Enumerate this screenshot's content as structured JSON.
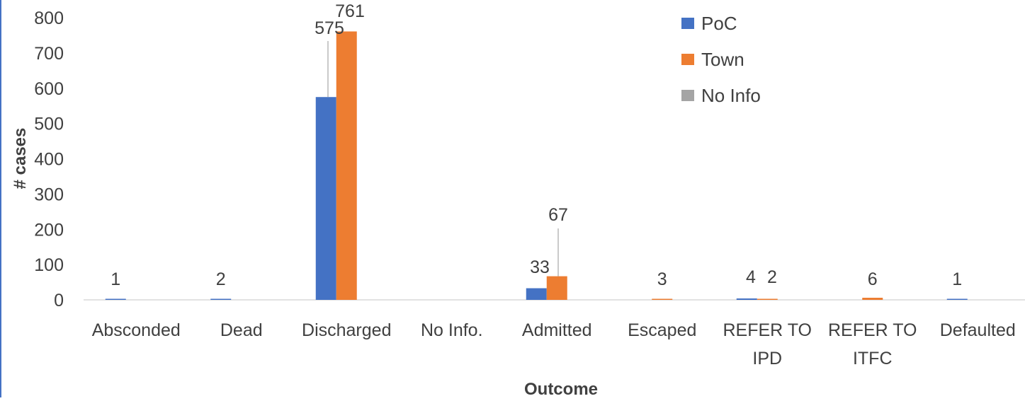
{
  "chart_data": {
    "type": "bar",
    "title": "",
    "xlabel": "Outcome",
    "ylabel": "# cases",
    "ylim": [
      0,
      800
    ],
    "yticks": [
      0,
      100,
      200,
      300,
      400,
      500,
      600,
      700,
      800
    ],
    "categories": [
      [
        "Absconded"
      ],
      [
        "Dead"
      ],
      [
        "Discharged"
      ],
      [
        "No Info."
      ],
      [
        "Admitted"
      ],
      [
        "Escaped"
      ],
      [
        "REFER TO",
        "IPD"
      ],
      [
        "REFER TO",
        "ITFC"
      ],
      [
        "Defaulted"
      ]
    ],
    "series": [
      {
        "name": "PoC",
        "color": "#4472C4",
        "values": [
          1,
          2,
          575,
          0,
          33,
          0,
          4,
          0,
          1
        ]
      },
      {
        "name": "Town",
        "color": "#ED7D31",
        "values": [
          0,
          0,
          761,
          0,
          67,
          3,
          2,
          6,
          0
        ]
      },
      {
        "name": "No Info",
        "color": "#A5A5A5",
        "values": [
          0,
          0,
          0,
          0,
          0,
          0,
          0,
          0,
          0
        ]
      }
    ],
    "data_labels": [
      {
        "category": 0,
        "series": 0,
        "text": "1"
      },
      {
        "category": 1,
        "series": 0,
        "text": "2"
      },
      {
        "category": 2,
        "series": 0,
        "text": "575"
      },
      {
        "category": 2,
        "series": 1,
        "text": "761"
      },
      {
        "category": 4,
        "series": 0,
        "text": "33"
      },
      {
        "category": 4,
        "series": 1,
        "text": "67"
      },
      {
        "category": 5,
        "series": 1,
        "text": "3"
      },
      {
        "category": 6,
        "series": 0,
        "text": "4"
      },
      {
        "category": 6,
        "series": 1,
        "text": "2"
      },
      {
        "category": 7,
        "series": 1,
        "text": "6"
      },
      {
        "category": 8,
        "series": 0,
        "text": "1"
      }
    ],
    "legend": {
      "position": "top-right"
    },
    "grid": false
  }
}
